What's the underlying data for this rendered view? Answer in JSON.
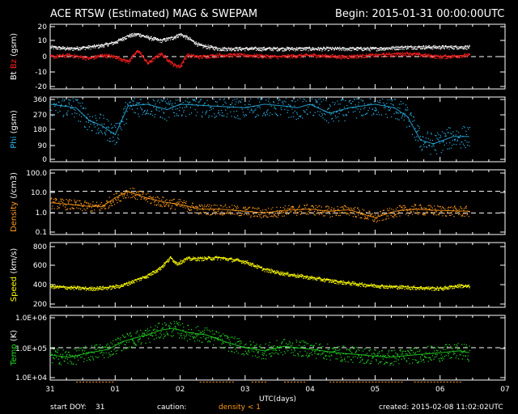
{
  "header": {
    "title": "ACE RTSW (Estimated) MAG & SWEPAM",
    "begin": "Begin: 2015-01-31 00:00:00UTC"
  },
  "footer": {
    "start_doy_label": "start DOY:",
    "start_doy_value": "31",
    "caution_label": "caution:",
    "caution_text": "density < 1",
    "created": "created: 2015-02-08 11:02:02UTC"
  },
  "chart_data": {
    "type": "scatter",
    "xlabel": "UTC(days)",
    "x_ticks": [
      "31",
      "01",
      "02",
      "03",
      "04",
      "05",
      "06",
      "07"
    ],
    "xlim_days": [
      0,
      7
    ],
    "panels": [
      {
        "id": "mag",
        "ylabel_parts": [
          {
            "text": "Bt",
            "color": "#ffffff"
          },
          {
            "text": "Bz",
            "color": "#ff2020"
          },
          {
            "text": "(gsm)",
            "color": "#ffffff"
          }
        ],
        "ylim": [
          -20,
          20
        ],
        "scale": "linear",
        "yticks": [
          "20",
          "10",
          "0",
          "-10",
          "-20"
        ],
        "dashed_refs": [
          0
        ],
        "series": [
          {
            "name": "Bt",
            "color": "#ffffff",
            "x": [
              0.0,
              0.3,
              0.6,
              0.8,
              1.0,
              1.2,
              1.35,
              1.5,
              1.7,
              1.9,
              2.0,
              2.1,
              2.3,
              2.6,
              3.0,
              3.5,
              4.0,
              4.5,
              5.0,
              5.5,
              6.0,
              6.45
            ],
            "y": [
              6,
              5,
              6,
              7,
              9,
              13,
              14,
              12,
              10,
              12,
              14,
              12,
              7,
              5,
              5,
              5,
              5,
              5,
              5,
              6,
              6,
              6
            ]
          },
          {
            "name": "Bz",
            "color": "#ff2020",
            "x": [
              0.0,
              0.3,
              0.6,
              0.8,
              1.0,
              1.2,
              1.35,
              1.5,
              1.7,
              1.9,
              2.0,
              2.1,
              2.3,
              2.6,
              3.0,
              3.5,
              4.0,
              4.5,
              5.0,
              5.5,
              6.0,
              6.45
            ],
            "y": [
              0,
              1,
              -1,
              1,
              0,
              -3,
              4,
              -4,
              2,
              -5,
              -6,
              1,
              0,
              1,
              1,
              0,
              1,
              0,
              1,
              2,
              0,
              1
            ]
          }
        ]
      },
      {
        "id": "phi",
        "ylabel_parts": [
          {
            "text": "Phi",
            "color": "#2ab4e8"
          },
          {
            "text": "(gsm)",
            "color": "#ffffff"
          }
        ],
        "ylim": [
          0,
          360
        ],
        "scale": "linear",
        "yticks": [
          "360",
          "270",
          "180",
          "90",
          "0"
        ],
        "series": [
          {
            "name": "Phi",
            "color": "#2ab4e8",
            "x": [
              0.0,
              0.4,
              0.6,
              0.8,
              1.0,
              1.2,
              1.5,
              1.8,
              2.0,
              2.5,
              3.0,
              3.3,
              3.6,
              3.8,
              4.0,
              4.3,
              4.6,
              5.0,
              5.3,
              5.5,
              5.7,
              5.9,
              6.2,
              6.45
            ],
            "y": [
              320,
              300,
              230,
              200,
              150,
              310,
              320,
              290,
              320,
              310,
              300,
              320,
              310,
              300,
              320,
              270,
              300,
              320,
              300,
              250,
              120,
              100,
              140,
              140
            ]
          }
        ]
      },
      {
        "id": "density",
        "ylabel_parts": [
          {
            "text": "Density",
            "color": "#ff9a1a"
          },
          {
            "text": "(/cm3)",
            "color": "#ffffff"
          }
        ],
        "ylim": [
          0.1,
          100
        ],
        "scale": "log",
        "yticks": [
          "100.0",
          "10.0",
          "1.0",
          "0.1"
        ],
        "dashed_refs": [
          10,
          1
        ],
        "series": [
          {
            "name": "Density",
            "color": "#ff9a1a",
            "x": [
              0.0,
              0.3,
              0.6,
              0.8,
              1.0,
              1.2,
              1.4,
              1.6,
              1.8,
              2.0,
              2.3,
              2.6,
              3.0,
              3.3,
              3.6,
              4.0,
              4.3,
              4.6,
              5.0,
              5.3,
              5.6,
              6.0,
              6.45
            ],
            "y": [
              3,
              2.5,
              2,
              2,
              5,
              10,
              6,
              4,
              3,
              2.5,
              1.5,
              1.5,
              1.2,
              1,
              1.3,
              1.5,
              1.2,
              1.4,
              0.6,
              1.2,
              1.5,
              1.3,
              1.2
            ]
          }
        ]
      },
      {
        "id": "speed",
        "ylabel_parts": [
          {
            "text": "Speed",
            "color": "#ffff00"
          },
          {
            "text": "(km/s)",
            "color": "#ffffff"
          }
        ],
        "ylim": [
          200,
          850
        ],
        "scale": "linear",
        "yticks": [
          "800",
          "600",
          "400",
          "200"
        ],
        "series": [
          {
            "name": "Speed",
            "color": "#ffff00",
            "x": [
              0.0,
              0.3,
              0.6,
              0.9,
              1.1,
              1.3,
              1.5,
              1.7,
              1.85,
              1.95,
              2.1,
              2.3,
              2.6,
              3.0,
              3.3,
              3.6,
              4.0,
              4.4,
              4.8,
              5.2,
              5.6,
              6.0,
              6.3,
              6.45
            ],
            "y": [
              410,
              400,
              390,
              400,
              420,
              470,
              520,
              600,
              700,
              640,
              690,
              690,
              700,
              660,
              580,
              540,
              500,
              460,
              430,
              410,
              400,
              390,
              420,
              410
            ]
          }
        ]
      },
      {
        "id": "temp",
        "ylabel_parts": [
          {
            "text": "Temp",
            "color": "#22dd22"
          },
          {
            "text": "(K)",
            "color": "#ffffff"
          }
        ],
        "ylim": [
          10000,
          1000000
        ],
        "scale": "log",
        "yticks": [
          "1.0E+06",
          "1.0E+05",
          "1.0E+04"
        ],
        "dashed_refs": [
          100000
        ],
        "series": [
          {
            "name": "Temp",
            "color": "#22dd22",
            "x": [
              0.0,
              0.3,
              0.6,
              0.9,
              1.1,
              1.3,
              1.5,
              1.7,
              1.9,
              2.1,
              2.4,
              2.7,
              3.0,
              3.3,
              3.6,
              4.0,
              4.4,
              4.8,
              5.2,
              5.6,
              6.0,
              6.3,
              6.45
            ],
            "y": [
              60000,
              50000,
              70000,
              90000,
              150000,
              200000,
              250000,
              350000,
              400000,
              300000,
              250000,
              150000,
              100000,
              80000,
              110000,
              90000,
              70000,
              60000,
              50000,
              60000,
              70000,
              80000,
              70000
            ]
          }
        ]
      }
    ]
  },
  "colors": {
    "background": "#000000",
    "axes": "#ffffff",
    "bt": "#ffffff",
    "bz": "#ff2020",
    "phi": "#2ab4e8",
    "density": "#ff9a1a",
    "speed": "#ffff00",
    "temp": "#22dd22",
    "caution": "#ff9a1a"
  }
}
